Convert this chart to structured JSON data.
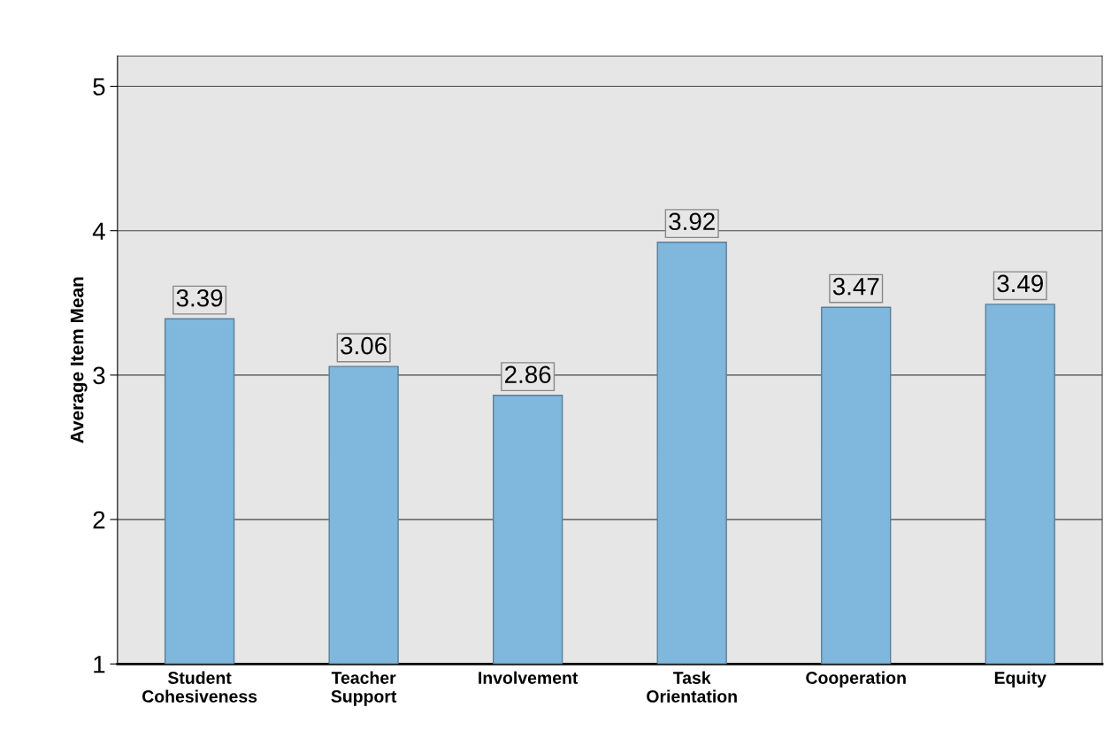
{
  "chart_data": {
    "type": "bar",
    "ylabel": "Average Item Mean",
    "categories": [
      "Student\nCohesiveness",
      "Teacher\nSupport",
      "Involvement",
      "Task\nOrientation",
      "Cooperation",
      "Equity"
    ],
    "values": [
      3.39,
      3.06,
      2.86,
      3.92,
      3.47,
      3.49
    ],
    "color": "#80b7dc",
    "ylim": [
      1,
      5.21
    ],
    "yticks": [
      1,
      2,
      3,
      4,
      5
    ],
    "grid": "y",
    "data_labels": true
  }
}
